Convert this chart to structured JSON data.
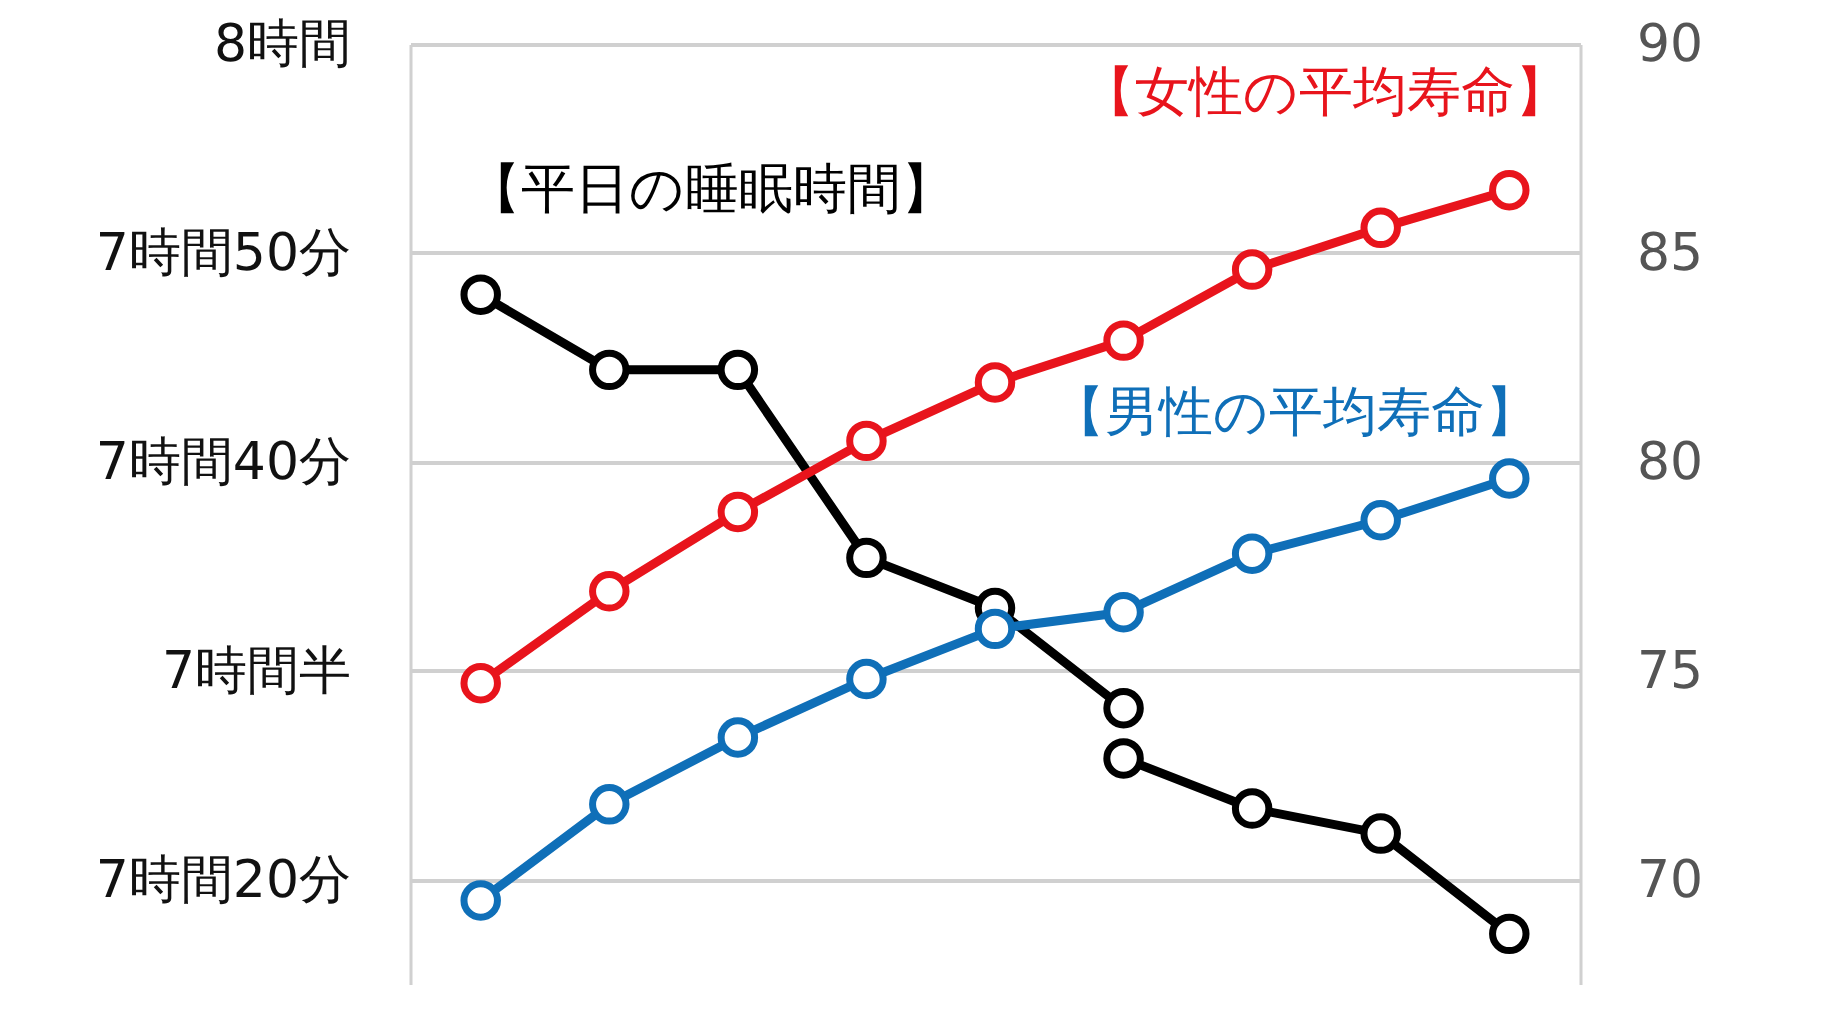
{
  "chart_data": {
    "type": "line",
    "categories": [
      null,
      null,
      null,
      null,
      null,
      null,
      null,
      null,
      null
    ],
    "series": [
      {
        "name": "【平日の睡眠時間】",
        "color": "#000000",
        "values": [
          7.8,
          7.74,
          7.74,
          7.59,
          7.55,
          7.47,
          null,
          null,
          null
        ]
      },
      {
        "color": "#000000",
        "values": [
          null,
          null,
          null,
          null,
          null,
          7.43,
          7.39,
          7.37,
          7.29
        ]
      },
      {
        "name": "【女性の平均寿命】",
        "color": "#e8141c",
        "axis": "y2",
        "values": [
          74.7,
          76.9,
          78.8,
          80.5,
          81.9,
          82.9,
          84.6,
          85.6,
          86.5
        ]
      },
      {
        "name": "【男性の平均寿命】",
        "color": "#0f6fb8",
        "axis": "y2",
        "values": [
          69.5,
          71.8,
          73.4,
          74.8,
          76.0,
          76.4,
          77.8,
          78.6,
          79.6
        ]
      }
    ],
    "ylim": [
      7.25,
      8
    ],
    "yticks": [
      {
        "value": 7.3333,
        "label": "7時間20分"
      },
      {
        "value": 7.5,
        "label": "7時間半"
      },
      {
        "value": 7.6667,
        "label": "7時間40分"
      },
      {
        "value": 7.8333,
        "label": "7時間50分"
      },
      {
        "value": 8,
        "label": "8時間"
      }
    ],
    "y2lim": [
      67.5,
      90
    ],
    "y2ticks": [
      70,
      75,
      80,
      85,
      90
    ],
    "grid": "y",
    "legend": false,
    "marker": "circle",
    "line_style": "solid"
  }
}
